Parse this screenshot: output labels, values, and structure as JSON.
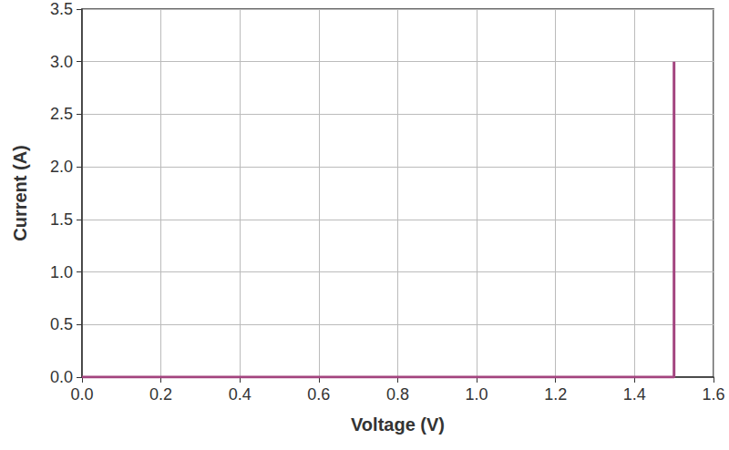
{
  "chart_data": {
    "type": "line",
    "x_label": "Voltage (V)",
    "y_label": "Current (A)",
    "x": [
      0,
      1.5,
      1.5
    ],
    "series": [
      {
        "name": "Current",
        "color": "#a3447f",
        "values": [
          0,
          0,
          3.0
        ]
      }
    ],
    "xlim": [
      0,
      1.6
    ],
    "xticks": [
      {
        "value": 0,
        "label": "0.0"
      },
      0.2,
      0.4,
      0.6,
      0.8,
      {
        "value": 1,
        "label": "1.0"
      },
      1.2,
      1.4,
      1.6
    ],
    "ylim": [
      0,
      3.5
    ],
    "yticks": [
      {
        "value": 0,
        "label": "0.0"
      },
      0.5,
      {
        "value": 1,
        "label": "1.0"
      },
      1.5,
      {
        "value": 2,
        "label": "2.0"
      },
      2.5,
      {
        "value": 3,
        "label": "3.0"
      },
      3.5
    ],
    "grid": true
  }
}
